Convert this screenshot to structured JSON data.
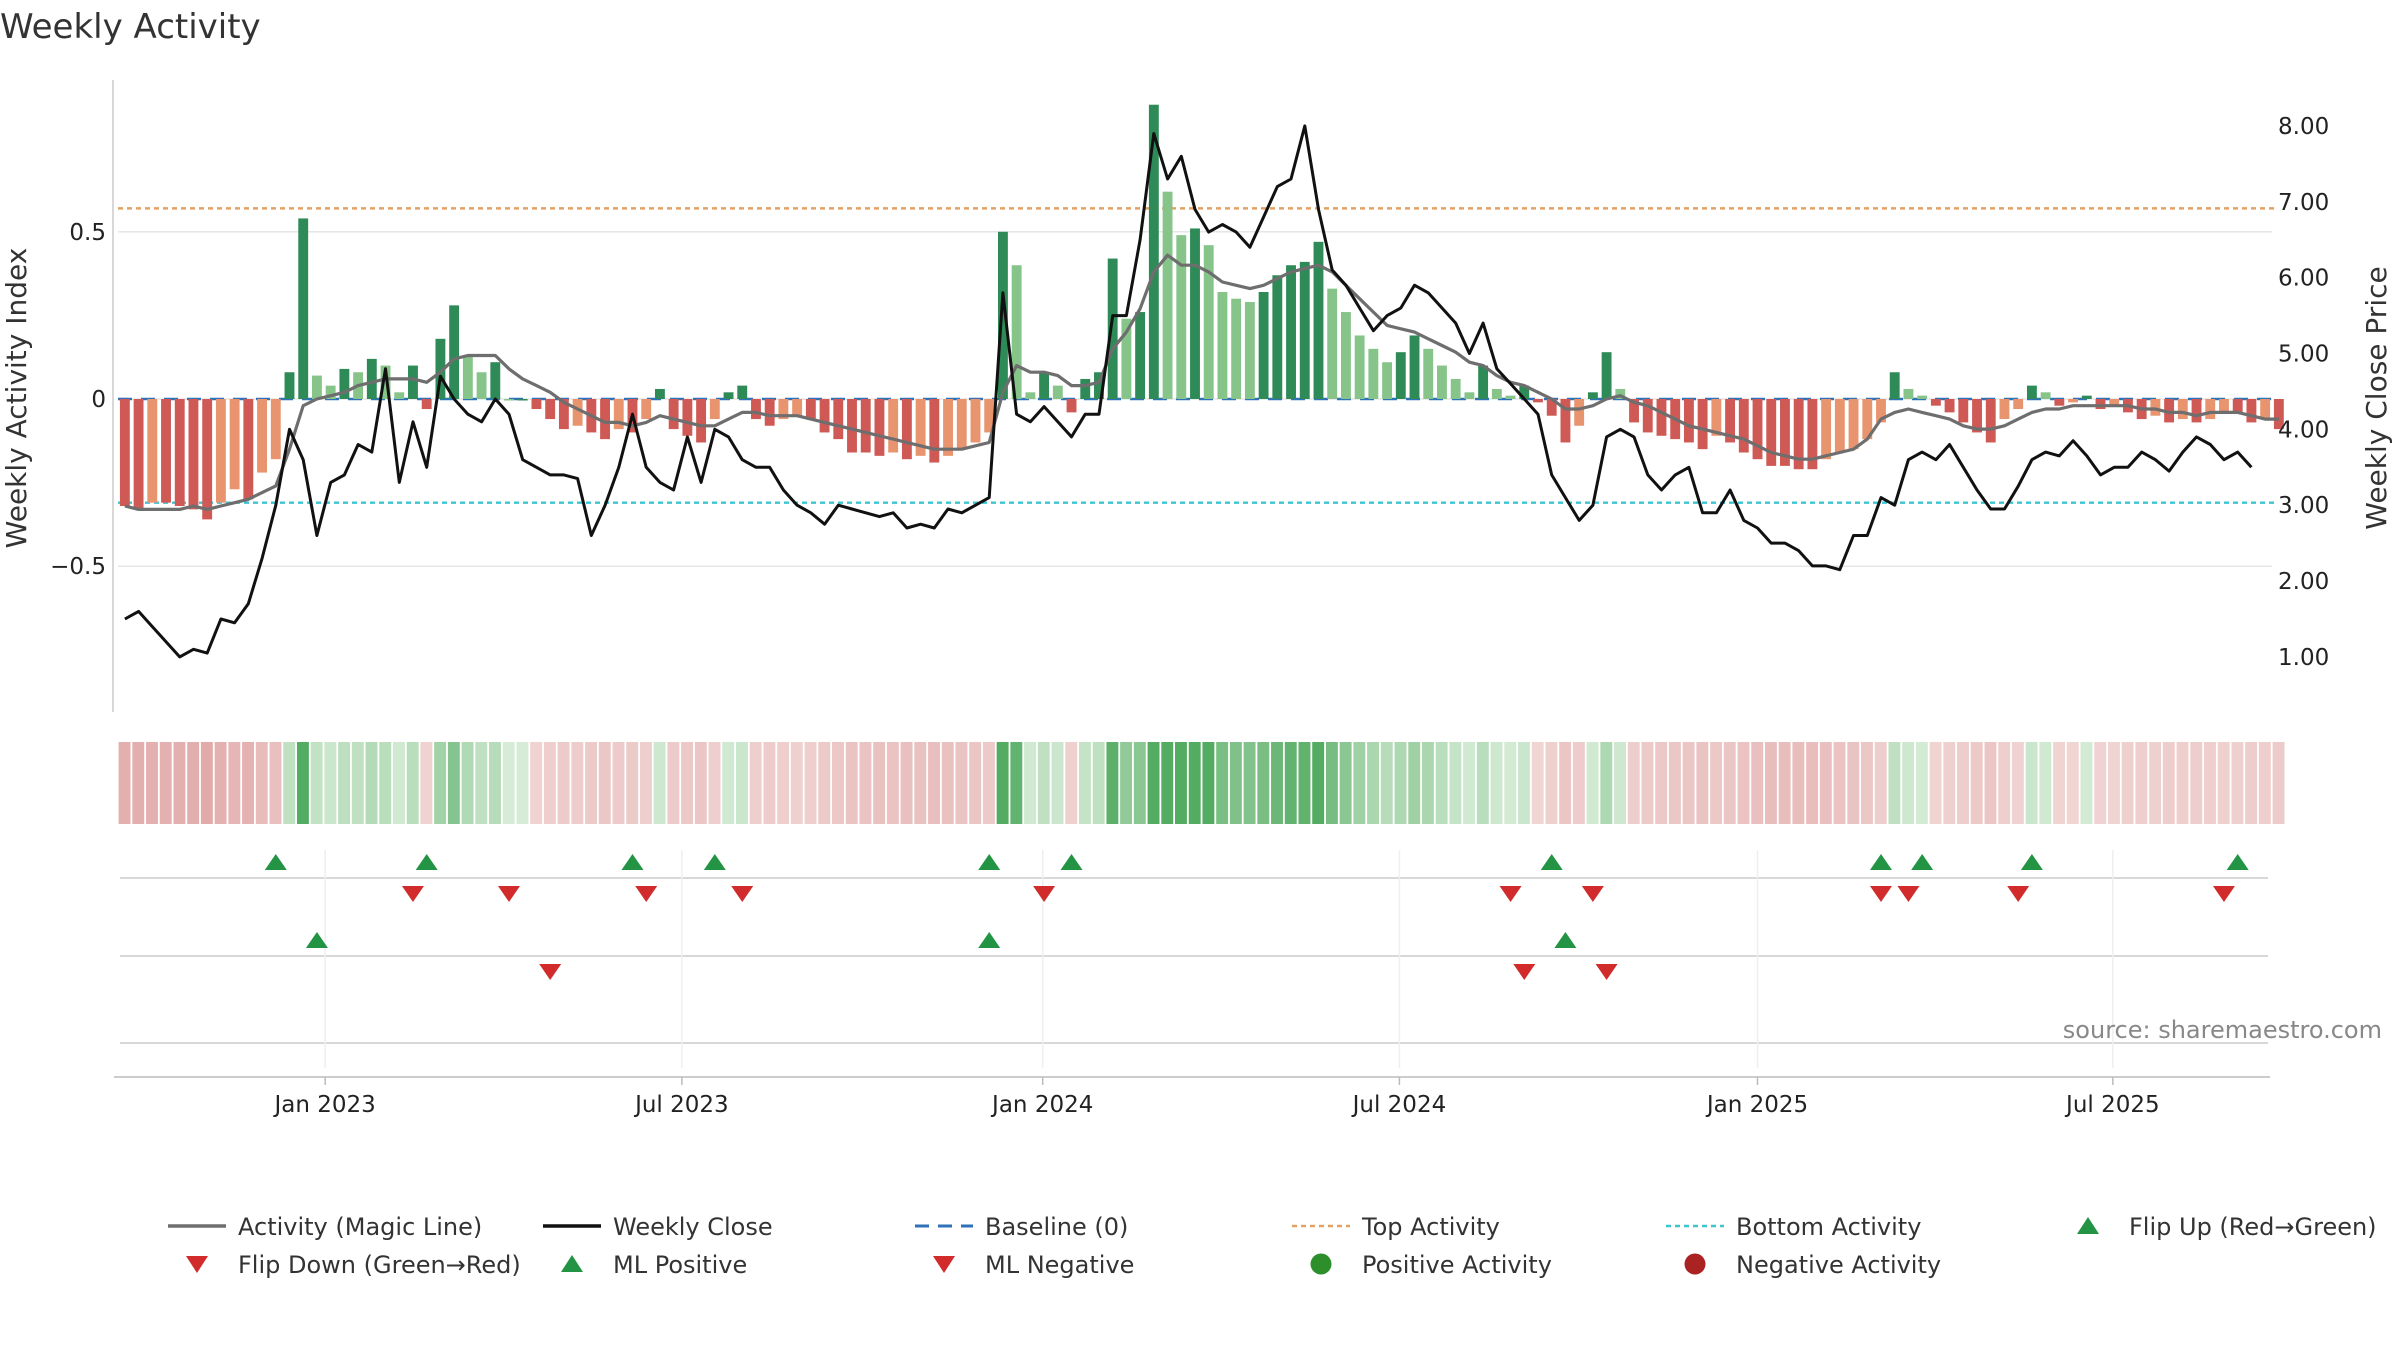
{
  "chart_data": {
    "type": "bar",
    "title": "Weekly Activity",
    "ylabel_left": "Weekly Activity Index",
    "ylabel_right": "Weekly Close Price",
    "source": "source: sharemaestro.com",
    "yticks_left": [
      {
        "v": 0.5,
        "label": "0.5"
      },
      {
        "v": 0,
        "label": "0"
      },
      {
        "v": -0.5,
        "label": "−0.5"
      }
    ],
    "yticks_right": [
      {
        "v": 8,
        "label": "8.00"
      },
      {
        "v": 7,
        "label": "7.00"
      },
      {
        "v": 6,
        "label": "6.00"
      },
      {
        "v": 5,
        "label": "5.00"
      },
      {
        "v": 4,
        "label": "4.00"
      },
      {
        "v": 3,
        "label": "3.00"
      },
      {
        "v": 2,
        "label": "2.00"
      },
      {
        "v": 1,
        "label": "1.00"
      }
    ],
    "ylim_left": [
      -0.93,
      0.93
    ],
    "ylim_right": [
      0.3,
      8.5
    ],
    "top_activity": 0.57,
    "bottom_activity": -0.31,
    "x_ticks": [
      {
        "week": 14.6,
        "label": "Jan 2023"
      },
      {
        "week": 40.6,
        "label": "Jul 2023"
      },
      {
        "week": 66.9,
        "label": "Jan 2024"
      },
      {
        "week": 92.9,
        "label": "Jul 2024"
      },
      {
        "week": 119.0,
        "label": "Jan 2025"
      },
      {
        "week": 144.9,
        "label": "Jul 2025"
      }
    ],
    "weeks": 157,
    "activity": [
      -0.32,
      -0.33,
      -0.31,
      -0.31,
      -0.32,
      -0.33,
      -0.36,
      -0.31,
      -0.27,
      -0.3,
      -0.22,
      -0.18,
      0.08,
      0.54,
      0.07,
      0.04,
      0.09,
      0.08,
      0.12,
      0.1,
      0.02,
      0.1,
      -0.03,
      0.18,
      0.28,
      0.13,
      0.08,
      0.11,
      0.0,
      0.0,
      -0.03,
      -0.06,
      -0.09,
      -0.08,
      -0.1,
      -0.12,
      -0.09,
      -0.1,
      -0.06,
      0.03,
      -0.09,
      -0.11,
      -0.13,
      -0.06,
      0.02,
      0.04,
      -0.06,
      -0.08,
      -0.06,
      -0.05,
      -0.06,
      -0.1,
      -0.12,
      -0.16,
      -0.16,
      -0.17,
      -0.16,
      -0.18,
      -0.17,
      -0.19,
      -0.17,
      -0.15,
      -0.13,
      -0.1,
      0.5,
      0.4,
      0.02,
      0.08,
      0.04,
      -0.04,
      0.06,
      0.08,
      0.42,
      0.24,
      0.26,
      0.88,
      0.62,
      0.49,
      0.51,
      0.46,
      0.32,
      0.3,
      0.29,
      0.32,
      0.37,
      0.4,
      0.41,
      0.47,
      0.33,
      0.26,
      0.19,
      0.15,
      0.11,
      0.14,
      0.19,
      0.15,
      0.1,
      0.06,
      0.02,
      0.1,
      0.03,
      0.01,
      0.04,
      -0.01,
      -0.05,
      -0.13,
      -0.08,
      0.02,
      0.14,
      0.03,
      -0.07,
      -0.1,
      -0.11,
      -0.12,
      -0.13,
      -0.15,
      -0.11,
      -0.13,
      -0.16,
      -0.18,
      -0.2,
      -0.2,
      -0.21,
      -0.21,
      -0.18,
      -0.16,
      -0.15,
      -0.12,
      -0.07,
      0.08,
      0.03,
      0.01,
      -0.02,
      -0.04,
      -0.07,
      -0.1,
      -0.13,
      -0.06,
      -0.03,
      0.04,
      0.02,
      -0.02,
      -0.01,
      0.01,
      -0.03,
      -0.02,
      -0.04,
      -0.06,
      -0.05,
      -0.07,
      -0.06,
      -0.07,
      -0.06,
      -0.04,
      -0.04,
      -0.07,
      -0.06,
      -0.09
    ],
    "magic_line": [
      -0.32,
      -0.33,
      -0.33,
      -0.33,
      -0.33,
      -0.32,
      -0.33,
      -0.32,
      -0.31,
      -0.3,
      -0.28,
      -0.26,
      -0.15,
      -0.02,
      0.0,
      0.01,
      0.02,
      0.04,
      0.05,
      0.06,
      0.06,
      0.06,
      0.05,
      0.08,
      0.12,
      0.13,
      0.13,
      0.13,
      0.09,
      0.06,
      0.04,
      0.02,
      -0.01,
      -0.03,
      -0.05,
      -0.07,
      -0.07,
      -0.08,
      -0.07,
      -0.05,
      -0.06,
      -0.07,
      -0.08,
      -0.08,
      -0.06,
      -0.04,
      -0.04,
      -0.05,
      -0.05,
      -0.05,
      -0.06,
      -0.07,
      -0.08,
      -0.09,
      -0.1,
      -0.11,
      -0.12,
      -0.13,
      -0.14,
      -0.15,
      -0.15,
      -0.15,
      -0.14,
      -0.13,
      0.02,
      0.1,
      0.08,
      0.08,
      0.07,
      0.04,
      0.04,
      0.05,
      0.15,
      0.2,
      0.27,
      0.38,
      0.43,
      0.4,
      0.4,
      0.38,
      0.35,
      0.34,
      0.33,
      0.34,
      0.36,
      0.38,
      0.39,
      0.4,
      0.38,
      0.34,
      0.3,
      0.26,
      0.22,
      0.21,
      0.2,
      0.18,
      0.16,
      0.14,
      0.11,
      0.1,
      0.07,
      0.05,
      0.04,
      0.02,
      0.0,
      -0.03,
      -0.03,
      -0.02,
      0.0,
      0.01,
      -0.01,
      -0.02,
      -0.04,
      -0.06,
      -0.08,
      -0.09,
      -0.1,
      -0.11,
      -0.12,
      -0.14,
      -0.16,
      -0.17,
      -0.18,
      -0.18,
      -0.17,
      -0.16,
      -0.15,
      -0.12,
      -0.06,
      -0.04,
      -0.03,
      -0.04,
      -0.05,
      -0.06,
      -0.08,
      -0.09,
      -0.09,
      -0.08,
      -0.06,
      -0.04,
      -0.03,
      -0.03,
      -0.02,
      -0.02,
      -0.02,
      -0.02,
      -0.02,
      -0.03,
      -0.03,
      -0.04,
      -0.04,
      -0.05,
      -0.04,
      -0.04,
      -0.04,
      -0.05,
      -0.06,
      -0.06
    ],
    "weekly_close": [
      1.5,
      1.6,
      1.4,
      1.2,
      1.0,
      1.1,
      1.05,
      1.5,
      1.45,
      1.7,
      2.3,
      3.0,
      4.0,
      3.6,
      2.6,
      3.3,
      3.4,
      3.8,
      3.7,
      4.8,
      3.3,
      4.1,
      3.5,
      4.7,
      4.4,
      4.2,
      4.1,
      4.4,
      4.2,
      3.6,
      3.5,
      3.4,
      3.4,
      3.35,
      2.6,
      3.0,
      3.5,
      4.2,
      3.5,
      3.3,
      3.2,
      3.9,
      3.3,
      4.0,
      3.9,
      3.6,
      3.5,
      3.5,
      3.2,
      3.0,
      2.9,
      2.75,
      3.0,
      2.95,
      2.9,
      2.85,
      2.9,
      2.7,
      2.75,
      2.7,
      2.95,
      2.9,
      3.0,
      3.1,
      5.8,
      4.2,
      4.1,
      4.3,
      4.1,
      3.9,
      4.2,
      4.2,
      5.5,
      5.5,
      6.5,
      7.9,
      7.3,
      7.6,
      6.9,
      6.6,
      6.7,
      6.6,
      6.4,
      6.8,
      7.2,
      7.3,
      8.0,
      6.9,
      6.1,
      5.9,
      5.6,
      5.3,
      5.5,
      5.6,
      5.9,
      5.8,
      5.6,
      5.4,
      5.0,
      5.4,
      4.8,
      4.6,
      4.4,
      4.2,
      3.4,
      3.1,
      2.8,
      3.0,
      3.9,
      4.0,
      3.9,
      3.4,
      3.2,
      3.4,
      3.5,
      2.9,
      2.9,
      3.2,
      2.8,
      2.7,
      2.5,
      2.5,
      2.4,
      2.2,
      2.2,
      2.15,
      2.6,
      2.6,
      3.1,
      3.0,
      3.6,
      3.7,
      3.6,
      3.8,
      3.5,
      3.2,
      2.95,
      2.95,
      3.25,
      3.6,
      3.7,
      3.65,
      3.85,
      3.65,
      3.4,
      3.5,
      3.5,
      3.7,
      3.6,
      3.45,
      3.7,
      3.9,
      3.8,
      3.6,
      3.7,
      3.5
    ],
    "flip_up_weeks": [
      11,
      22,
      37,
      43,
      63,
      69,
      104,
      128,
      131,
      139,
      154
    ],
    "flip_down_weeks": [
      21,
      28,
      38,
      45,
      67,
      101,
      107,
      128,
      130,
      138,
      153
    ],
    "ml_positive_weeks": [
      14,
      63,
      105
    ],
    "ml_negative_weeks": [
      31,
      102,
      108
    ],
    "legend": [
      {
        "key": "activity-magic-line",
        "label": "Activity (Magic Line)",
        "color": "#6e6e6e",
        "kind": "line"
      },
      {
        "key": "weekly-close",
        "label": "Weekly Close",
        "color": "#111111",
        "kind": "line"
      },
      {
        "key": "baseline",
        "label": "Baseline (0)",
        "color": "#2f72b8",
        "kind": "dash"
      },
      {
        "key": "top-activity",
        "label": "Top Activity",
        "color": "#e3a264",
        "kind": "dot"
      },
      {
        "key": "bottom-activity",
        "label": "Bottom Activity",
        "color": "#3cc4d0",
        "kind": "dot"
      },
      {
        "key": "flip-up",
        "label": "Flip Up (Red→Green)",
        "color": "#229444",
        "kind": "tri-up"
      },
      {
        "key": "flip-down",
        "label": "Flip Down (Green→Red)",
        "color": "#d12b2b",
        "kind": "tri-down"
      },
      {
        "key": "ml-positive",
        "label": "ML Positive",
        "color": "#229444",
        "kind": "tri-up"
      },
      {
        "key": "ml-negative",
        "label": "ML Negative",
        "color": "#d12b2b",
        "kind": "tri-down"
      },
      {
        "key": "positive-activity",
        "label": "Positive Activity",
        "color": "#2c8f2c",
        "kind": "circle"
      },
      {
        "key": "negative-activity",
        "label": "Negative Activity",
        "color": "#aa2222",
        "kind": "circle"
      }
    ],
    "colors": {
      "pos_dark": "#2e8b57",
      "pos_light": "#86c48a",
      "neg_dark": "#cf5a55",
      "neg_light": "#e8946f",
      "grid": "#dddddd",
      "axis": "#cccccc"
    }
  }
}
